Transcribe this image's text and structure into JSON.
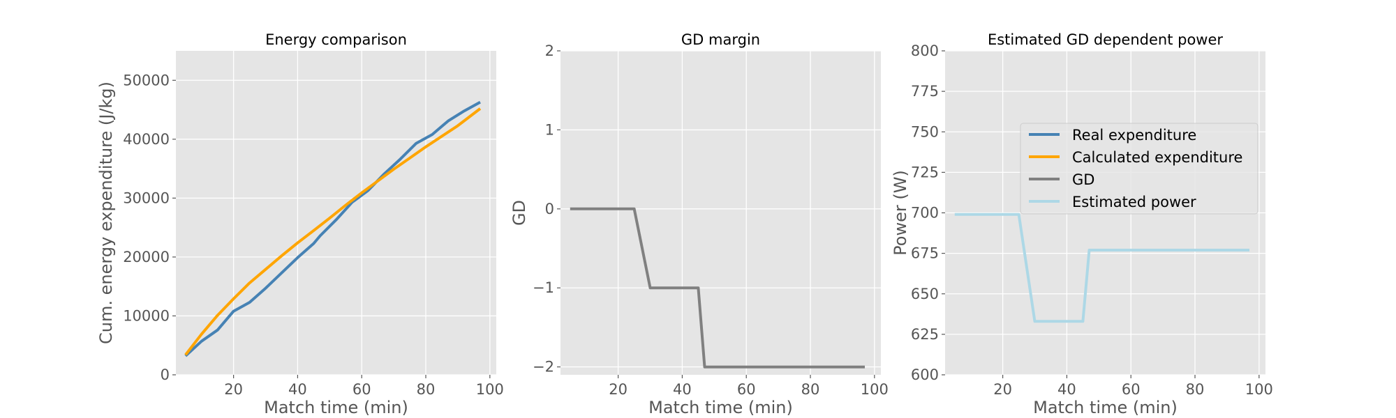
{
  "chart_data": [
    {
      "type": "line",
      "title": "Energy comparison",
      "xlabel": "Match time (min)",
      "ylabel": "Cum. energy expenditure (J/kg)",
      "xlim": [
        2,
        102
      ],
      "ylim": [
        0,
        55000
      ],
      "xticks": [
        20,
        40,
        60,
        80,
        100
      ],
      "yticks": [
        0,
        10000,
        20000,
        30000,
        40000,
        50000
      ],
      "ytick_labels": [
        "0",
        "10000",
        "20000",
        "30000",
        "40000",
        "50000"
      ],
      "grid": true,
      "series": [
        {
          "name": "Real expenditure",
          "color": "#4682b4",
          "x": [
            5,
            10,
            15,
            20,
            25,
            30,
            35,
            40,
            45,
            47,
            52,
            57,
            62,
            67,
            72,
            77,
            82,
            87,
            92,
            97
          ],
          "y": [
            3200,
            5700,
            7600,
            10800,
            12300,
            14700,
            17300,
            19900,
            22300,
            23600,
            26300,
            29300,
            31300,
            34100,
            36600,
            39300,
            40800,
            43100,
            44800,
            46300
          ]
        },
        {
          "name": "Calculated expenditure",
          "color": "#ffa500",
          "x": [
            5,
            10,
            15,
            20,
            25,
            30,
            35,
            40,
            45,
            50,
            55,
            60,
            65,
            70,
            75,
            80,
            85,
            90,
            97
          ],
          "y": [
            3400,
            6900,
            10100,
            12900,
            15600,
            17900,
            20200,
            22400,
            24500,
            26600,
            28800,
            30900,
            32900,
            34900,
            36800,
            38700,
            40500,
            42300,
            45200
          ]
        }
      ]
    },
    {
      "type": "line",
      "title": "GD margin",
      "xlabel": "Match time (min)",
      "ylabel": "GD",
      "xlim": [
        2,
        102
      ],
      "ylim": [
        -2.1,
        2
      ],
      "xticks": [
        20,
        40,
        60,
        80,
        100
      ],
      "yticks": [
        -2,
        -1,
        0,
        1,
        2
      ],
      "ytick_labels": [
        "−2",
        "−1",
        "0",
        "1",
        "2"
      ],
      "grid": true,
      "series": [
        {
          "name": "GD",
          "color": "#808080",
          "x": [
            5,
            25,
            30,
            45,
            47,
            97
          ],
          "y": [
            0,
            0,
            -1,
            -1,
            -2,
            -2
          ]
        }
      ]
    },
    {
      "type": "line",
      "title": "Estimated GD dependent power",
      "xlabel": "Match time (min)",
      "ylabel": "Power (W)",
      "xlim": [
        2,
        102
      ],
      "ylim": [
        600,
        800
      ],
      "xticks": [
        20,
        40,
        60,
        80,
        100
      ],
      "yticks": [
        600,
        625,
        650,
        675,
        700,
        725,
        750,
        775,
        800
      ],
      "ytick_labels": [
        "600",
        "625",
        "650",
        "675",
        "700",
        "725",
        "750",
        "775",
        "800"
      ],
      "grid": true,
      "series": [
        {
          "name": "Estimated power",
          "color": "#add8e6",
          "x": [
            5,
            25,
            30,
            45,
            47,
            97
          ],
          "y": [
            699,
            699,
            633,
            633,
            677,
            677
          ]
        }
      ]
    }
  ],
  "legend": {
    "placement": "upper-right",
    "entries": [
      {
        "label": "Real expenditure",
        "color": "#4682b4"
      },
      {
        "label": "Calculated expenditure",
        "color": "#ffa500"
      },
      {
        "label": "GD",
        "color": "#808080"
      },
      {
        "label": "Estimated power",
        "color": "#add8e6"
      }
    ]
  },
  "style": {
    "plot_background": "#e5e5e5",
    "grid_color": "#ffffff",
    "tick_color": "#555555"
  }
}
